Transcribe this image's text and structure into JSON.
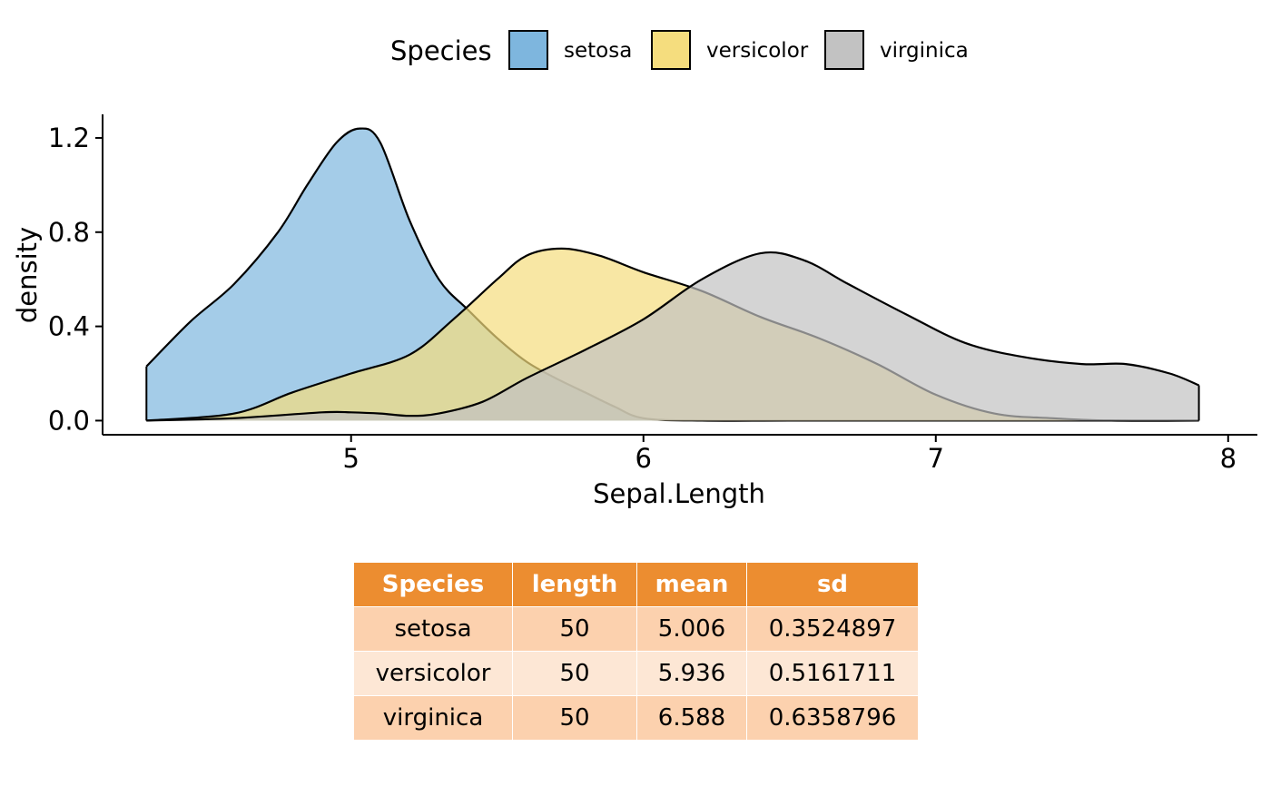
{
  "colors": {
    "setosa": "#7EB6DE",
    "versicolor": "#F5DD7E",
    "virginica": "#C2C2C2",
    "table_header": "#EC8D30",
    "table_row_dark": "#FCD1AE",
    "table_row_light": "#FDE7D5"
  },
  "chart_data": {
    "type": "area",
    "subtype": "density",
    "title": "",
    "xlabel": "Sepal.Length",
    "ylabel": "density",
    "xlim": [
      4.15,
      8.1
    ],
    "ylim": [
      -0.06,
      1.3
    ],
    "xticks": [
      5,
      6,
      7,
      8
    ],
    "yticks": [
      0.0,
      0.4,
      0.8,
      1.2
    ],
    "ytick_labels": [
      "0.0",
      "0.4",
      "0.8",
      "1.2"
    ],
    "grid": false,
    "legend": {
      "title": "Species",
      "position": "top",
      "entries": [
        "setosa",
        "versicolor",
        "virginica"
      ]
    },
    "series": [
      {
        "name": "setosa",
        "x": [
          4.3,
          4.45,
          4.6,
          4.75,
          4.85,
          4.95,
          5.03,
          5.1,
          5.2,
          5.3,
          5.4,
          5.5,
          5.6,
          5.7,
          5.8,
          5.9,
          6.0,
          6.2,
          6.5,
          7.0,
          7.5,
          7.9
        ],
        "y": [
          0.23,
          0.42,
          0.58,
          0.8,
          1.0,
          1.18,
          1.24,
          1.18,
          0.85,
          0.6,
          0.47,
          0.35,
          0.25,
          0.18,
          0.12,
          0.06,
          0.01,
          0.0,
          0.0,
          0.0,
          0.0,
          0.0
        ]
      },
      {
        "name": "versicolor",
        "x": [
          4.3,
          4.6,
          4.8,
          5.0,
          5.2,
          5.35,
          5.5,
          5.6,
          5.72,
          5.85,
          6.0,
          6.2,
          6.4,
          6.6,
          6.8,
          7.0,
          7.2,
          7.4,
          7.6,
          7.9
        ],
        "y": [
          0.0,
          0.03,
          0.12,
          0.2,
          0.28,
          0.43,
          0.6,
          0.7,
          0.73,
          0.7,
          0.63,
          0.55,
          0.44,
          0.35,
          0.24,
          0.11,
          0.03,
          0.01,
          0.0,
          0.0
        ]
      },
      {
        "name": "virginica",
        "x": [
          4.3,
          4.6,
          4.9,
          5.0,
          5.1,
          5.2,
          5.3,
          5.45,
          5.6,
          5.8,
          6.0,
          6.2,
          6.4,
          6.55,
          6.7,
          6.9,
          7.1,
          7.3,
          7.5,
          7.65,
          7.8,
          7.9
        ],
        "y": [
          0.0,
          0.01,
          0.035,
          0.035,
          0.03,
          0.02,
          0.03,
          0.08,
          0.18,
          0.3,
          0.43,
          0.6,
          0.71,
          0.68,
          0.58,
          0.45,
          0.33,
          0.27,
          0.24,
          0.24,
          0.2,
          0.15
        ]
      }
    ],
    "table": {
      "columns": [
        "Species",
        "length",
        "mean",
        "sd"
      ],
      "rows": [
        [
          "setosa",
          "50",
          "5.006",
          "0.3524897"
        ],
        [
          "versicolor",
          "50",
          "5.936",
          "0.5161711"
        ],
        [
          "virginica",
          "50",
          "6.588",
          "0.6358796"
        ]
      ]
    }
  }
}
